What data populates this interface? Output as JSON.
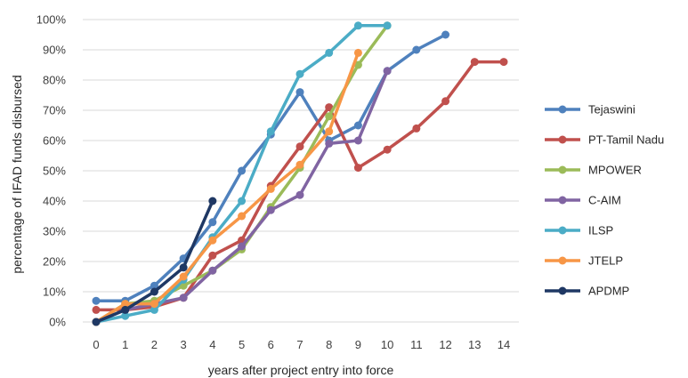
{
  "chart_data": {
    "type": "line",
    "xlabel": "years after project entry into force",
    "ylabel": "percentage of IFAD funds disbursed",
    "xlim": [
      0,
      14
    ],
    "ylim": [
      0,
      100
    ],
    "x_ticks": [
      "0",
      "1",
      "2",
      "3",
      "4",
      "5",
      "6",
      "7",
      "8",
      "9",
      "10",
      "11",
      "12",
      "13",
      "14"
    ],
    "y_ticks": [
      "0%",
      "10%",
      "20%",
      "30%",
      "40%",
      "50%",
      "60%",
      "70%",
      "80%",
      "90%",
      "100%"
    ],
    "grid": "horizontal",
    "legend_position": "right",
    "series": [
      {
        "name": "Tejaswini",
        "color": "#4f81bd",
        "x": [
          0,
          1,
          2,
          3,
          4,
          5,
          6,
          7,
          8,
          9,
          10,
          11,
          12
        ],
        "y": [
          7,
          7,
          12,
          21,
          33,
          50,
          62,
          76,
          60,
          65,
          83,
          90,
          95
        ]
      },
      {
        "name": "PT-Tamil Nadu",
        "color": "#c0504d",
        "x": [
          0,
          1,
          2,
          3,
          4,
          5,
          6,
          7,
          8,
          9,
          10,
          11,
          12,
          13,
          14
        ],
        "y": [
          4,
          4,
          5,
          8,
          22,
          27,
          45,
          58,
          71,
          51,
          57,
          64,
          73,
          86,
          86
        ]
      },
      {
        "name": "MPOWER",
        "color": "#9bbb59",
        "x": [
          0,
          1,
          2,
          3,
          4,
          5,
          6,
          7,
          8,
          9,
          10
        ],
        "y": [
          0,
          6,
          7,
          12,
          17,
          24,
          38,
          51,
          68,
          85,
          98
        ]
      },
      {
        "name": "C-AIM",
        "color": "#8064a2",
        "x": [
          0,
          1,
          2,
          3,
          4,
          5,
          6,
          7,
          8,
          9,
          10
        ],
        "y": [
          0,
          4,
          6,
          8,
          17,
          25,
          37,
          42,
          59,
          60,
          83
        ]
      },
      {
        "name": "ILSP",
        "color": "#4bacc6",
        "x": [
          0,
          1,
          2,
          3,
          4,
          5,
          6,
          7,
          8,
          9,
          10
        ],
        "y": [
          0,
          2,
          4,
          14,
          28,
          40,
          63,
          82,
          89,
          98,
          98
        ]
      },
      {
        "name": "JTELP",
        "color": "#f79646",
        "x": [
          0,
          1,
          2,
          3,
          4,
          5,
          6,
          7,
          8,
          9
        ],
        "y": [
          0,
          6,
          6,
          15,
          27,
          35,
          44,
          52,
          63,
          89
        ]
      },
      {
        "name": "APDMP",
        "color": "#1f3864",
        "x": [
          0,
          1,
          2,
          3,
          4
        ],
        "y": [
          0,
          4,
          10,
          18,
          40
        ]
      }
    ]
  }
}
